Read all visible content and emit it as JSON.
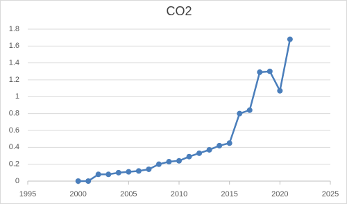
{
  "chart_data": {
    "type": "line",
    "title": "CO2",
    "x": [
      2000,
      2001,
      2002,
      2003,
      2004,
      2005,
      2006,
      2007,
      2008,
      2009,
      2010,
      2011,
      2012,
      2013,
      2014,
      2015,
      2016,
      2017,
      2018,
      2019,
      2020,
      2021
    ],
    "series": [
      {
        "name": "CO2",
        "color": "#4a7ebb",
        "values": [
          0,
          0,
          0.08,
          0.08,
          0.1,
          0.11,
          0.12,
          0.14,
          0.2,
          0.23,
          0.24,
          0.29,
          0.33,
          0.37,
          0.42,
          0.45,
          0.8,
          0.84,
          1.29,
          1.3,
          1.07,
          1.68
        ]
      }
    ],
    "xlim": [
      1995,
      2025
    ],
    "xticks": [
      1995,
      2000,
      2005,
      2010,
      2015,
      2020,
      2025
    ],
    "ylim": [
      0,
      1.8
    ],
    "yticks": [
      0,
      0.2,
      0.4,
      0.6,
      0.8,
      1,
      1.2,
      1.4,
      1.6,
      1.8
    ],
    "grid": true
  }
}
